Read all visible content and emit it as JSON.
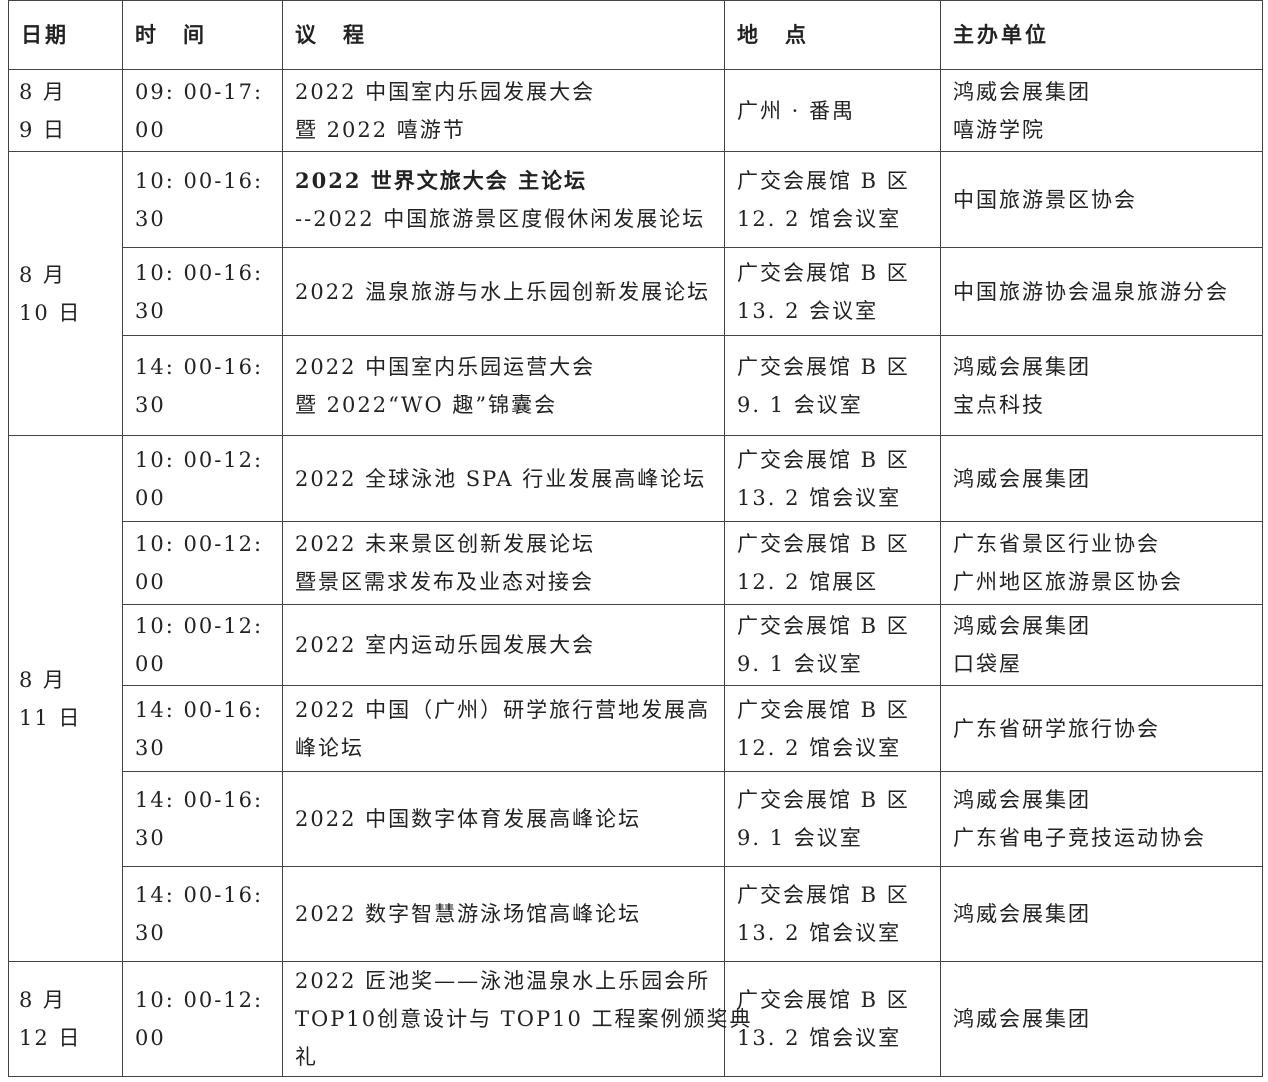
{
  "headers": [
    "日期",
    "时　间",
    "议　程",
    "地　点",
    "主办单位"
  ],
  "groups": [
    {
      "date": [
        "8 月",
        "9 日"
      ],
      "rows": [
        {
          "time": "09: 00-17: 00",
          "agenda": [
            "2022 中国室内乐园发展大会",
            "暨 2022 嘻游节"
          ],
          "venue": [
            "广州 · 番禺"
          ],
          "host": [
            "鸿威会展集团",
            "嘻游学院"
          ],
          "h": 82
        }
      ]
    },
    {
      "date": [
        "8 月",
        "10 日"
      ],
      "rows": [
        {
          "time": "10: 00-16: 30",
          "agenda": [
            "2022 世界文旅大会 主论坛",
            "--2022 中国旅游景区度假休闲发展论坛"
          ],
          "bold_first": true,
          "venue": [
            "广交会展馆 B 区",
            "12. 2 馆会议室"
          ],
          "host": [
            "中国旅游景区协会"
          ],
          "h": 96
        },
        {
          "time": "10: 00-16: 30",
          "agenda": [
            "2022 温泉旅游与水上乐园创新发展论坛"
          ],
          "venue": [
            "广交会展馆 B 区",
            "13. 2 会议室"
          ],
          "host": [
            "中国旅游协会温泉旅游分会"
          ],
          "h": 88
        },
        {
          "time": "14: 00-16: 30",
          "agenda": [
            "2022 中国室内乐园运营大会",
            "暨 2022“WO 趣”锦囊会"
          ],
          "venue": [
            "广交会展馆 B 区",
            "9. 1 会议室"
          ],
          "host": [
            "鸿威会展集团",
            "宝点科技"
          ],
          "h": 100
        }
      ]
    },
    {
      "date": [
        "8 月",
        "11 日"
      ],
      "rows": [
        {
          "time": "10: 00-12: 00",
          "agenda": [
            "2022 全球泳池 SPA 行业发展高峰论坛"
          ],
          "venue": [
            "广交会展馆 B 区",
            "13. 2 馆会议室"
          ],
          "host": [
            "鸿威会展集团"
          ],
          "h": 86
        },
        {
          "time": "10: 00-12: 00",
          "agenda": [
            "2022 未来景区创新发展论坛",
            "暨景区需求发布及业态对接会"
          ],
          "venue": [
            "广交会展馆 B 区",
            "12. 2 馆展区"
          ],
          "host": [
            "广东省景区行业协会",
            "广州地区旅游景区协会"
          ],
          "h": 83
        },
        {
          "time": "10: 00-12: 00",
          "agenda": [
            "2022 室内运动乐园发展大会"
          ],
          "venue": [
            "广交会展馆 B 区",
            "9. 1 会议室"
          ],
          "host": [
            "鸿威会展集团",
            "口袋屋"
          ],
          "h": 81
        },
        {
          "time": "14: 00-16: 30",
          "agenda": [
            "2022 中国（广州）研学旅行营地发展高",
            "峰论坛"
          ],
          "venue": [
            "广交会展馆 B 区",
            "12. 2 馆会议室"
          ],
          "host": [
            "广东省研学旅行协会"
          ],
          "h": 86
        },
        {
          "time": "14: 00-16: 30",
          "agenda": [
            "2022 中国数字体育发展高峰论坛"
          ],
          "venue": [
            "广交会展馆 B 区",
            "9. 1 会议室"
          ],
          "host": [
            "鸿威会展集团",
            "广东省电子竞技运动协会"
          ],
          "h": 95
        },
        {
          "time": "14: 00-16: 30",
          "agenda": [
            "2022 数字智慧游泳场馆高峰论坛"
          ],
          "venue": [
            "广交会展馆 B 区",
            "13. 2 馆会议室"
          ],
          "host": [
            "鸿威会展集团"
          ],
          "h": 95
        }
      ]
    },
    {
      "date": [
        "8 月",
        "12 日"
      ],
      "rows": [
        {
          "time": "10: 00-12: 00",
          "agenda": [
            "2022 匠池奖——泳池温泉水上乐园会所",
            "TOP10创意设计与 TOP10 工程案例颁奖典",
            "礼"
          ],
          "venue": [
            "广交会展馆 B 区",
            "13. 2 馆会议室"
          ],
          "host": [
            "鸿威会展集团"
          ],
          "h": 113
        }
      ]
    }
  ]
}
